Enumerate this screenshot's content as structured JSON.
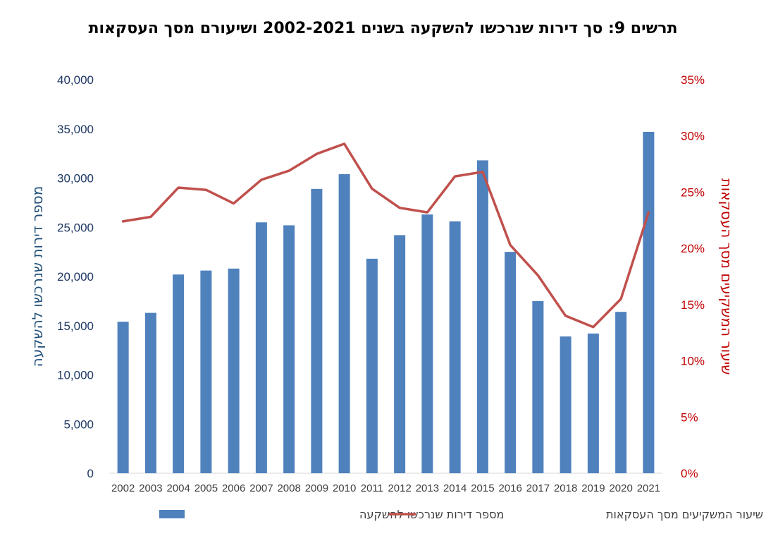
{
  "chart_data": {
    "type": "bar",
    "title": "תרשים 9: סך דירות שנרכשו להשקעה בשנים 2002-2021 ושיעורם מסך העסקאות",
    "categories": [
      "2002",
      "2003",
      "2004",
      "2005",
      "2006",
      "2007",
      "2008",
      "2009",
      "2010",
      "2011",
      "2012",
      "2013",
      "2014",
      "2015",
      "2016",
      "2017",
      "2018",
      "2019",
      "2020",
      "2021"
    ],
    "series": [
      {
        "name": "מספר דירות שנרכשו להשקעה",
        "kind": "bar",
        "axis": "left",
        "color": "#4f81bd",
        "values": [
          15400,
          16300,
          20200,
          20600,
          20800,
          25500,
          25200,
          28900,
          30400,
          21800,
          24200,
          26300,
          25600,
          31800,
          22500,
          17500,
          13900,
          14200,
          16400,
          34700
        ]
      },
      {
        "name": "שיעור המשקיעים מסך העסקאות",
        "kind": "line",
        "axis": "right",
        "color": "#c0504d",
        "values": [
          22.4,
          22.8,
          25.4,
          25.2,
          24.0,
          26.1,
          26.9,
          28.4,
          29.3,
          25.3,
          23.6,
          23.2,
          26.4,
          26.8,
          20.3,
          17.6,
          14.0,
          13.0,
          15.5,
          23.2
        ]
      }
    ],
    "ylabel": "מספר דירות שנרכשו להשקעה",
    "y2label": "שיעור המשקיעים מסך העסקאות",
    "ylim": [
      0,
      40000
    ],
    "y2lim": [
      0,
      35
    ],
    "yticks": [
      "0",
      "5,000",
      "10,000",
      "15,000",
      "20,000",
      "25,000",
      "30,000",
      "35,000",
      "40,000"
    ],
    "y2ticks": [
      "0%",
      "5%",
      "10%",
      "15%",
      "20%",
      "25%",
      "30%",
      "35%"
    ],
    "legend_position": "bottom",
    "legend": [
      "מספר דירות שנרכשו להשקעה",
      "שיעור המשקיעים מסך העסקאות"
    ]
  }
}
